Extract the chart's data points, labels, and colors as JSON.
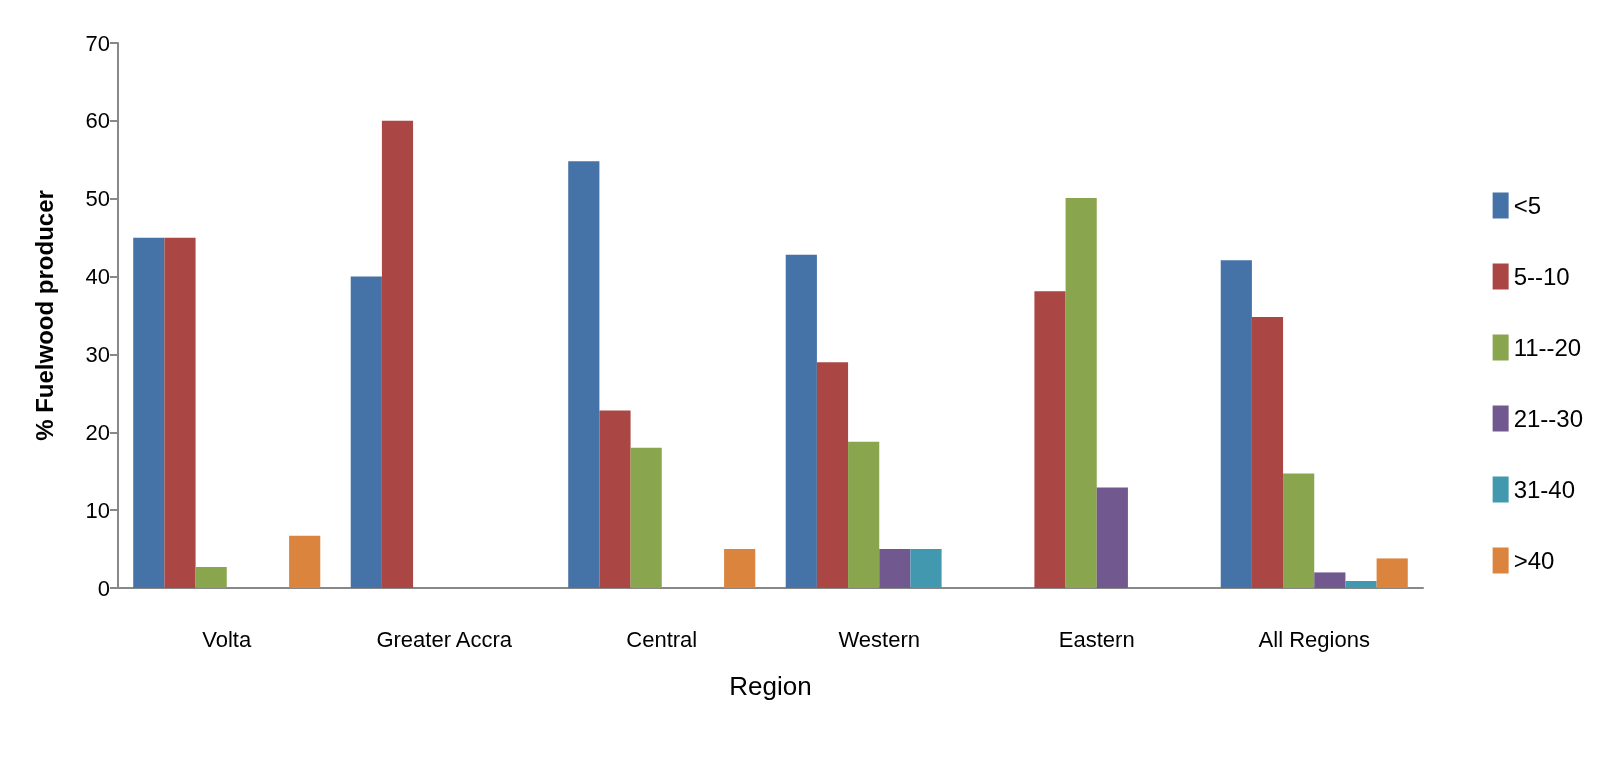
{
  "chart_data": {
    "type": "bar",
    "xlabel": "Region",
    "ylabel": "% Fuelwood producer",
    "categories": [
      "Volta",
      "Greater Accra",
      "Central",
      "Western",
      "Eastern",
      "All Regions"
    ],
    "series": [
      {
        "name": "<5",
        "color": "#4572a7",
        "values": [
          45,
          40,
          54.8,
          42.8,
          null,
          42.1
        ]
      },
      {
        "name": "5--10",
        "color": "#aa4643",
        "values": [
          45,
          60,
          22.8,
          29,
          38.1,
          34.8
        ]
      },
      {
        "name": "11--20",
        "color": "#89a54e",
        "values": [
          2.7,
          null,
          18,
          18.8,
          50.1,
          14.7
        ]
      },
      {
        "name": "21--30",
        "color": "#71588f",
        "values": [
          null,
          null,
          null,
          5,
          12.9,
          2
        ]
      },
      {
        "name": "31-40",
        "color": "#4198af",
        "values": [
          null,
          null,
          null,
          5,
          null,
          0.9
        ]
      },
      {
        "name": ">40",
        "color": "#db843d",
        "values": [
          6.7,
          null,
          5,
          null,
          null,
          3.8
        ]
      }
    ],
    "ylim": [
      0,
      70
    ],
    "yticks": [
      0,
      10,
      20,
      30,
      40,
      50,
      60,
      70
    ],
    "grid": false,
    "legend": "right"
  }
}
